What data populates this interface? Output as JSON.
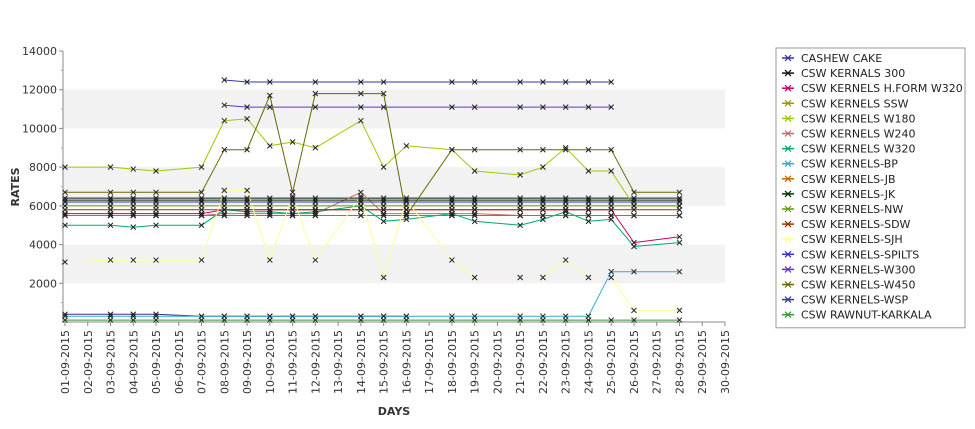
{
  "chart_data": {
    "type": "line",
    "title": "",
    "xlabel": "DAYS",
    "ylabel": "RATES",
    "ylim": [
      0,
      14000
    ],
    "yticks": [
      2000,
      4000,
      6000,
      8000,
      10000,
      12000,
      14000
    ],
    "ytick_labels": [
      "2000",
      "4000",
      "6000",
      "8000",
      "10000",
      "12000",
      "14000"
    ],
    "grid": "horizontal alternating bands",
    "legend_position": "right",
    "categories": [
      "01-09-2015",
      "02-09-2015",
      "03-09-2015",
      "04-09-2015",
      "05-09-2015",
      "06-09-2015",
      "07-09-2015",
      "08-09-2015",
      "09-09-2015",
      "10-09-2015",
      "11-09-2015",
      "12-09-2015",
      "13-09-2015",
      "14-09-2015",
      "15-09-2015",
      "16-09-2015",
      "17-09-2015",
      "18-09-2015",
      "19-09-2015",
      "20-09-2015",
      "21-09-2015",
      "22-09-2015",
      "23-09-2015",
      "24-09-2015",
      "25-09-2015",
      "26-09-2015",
      "27-09-2015",
      "28-09-2015",
      "29-09-2015",
      "30-09-2015"
    ],
    "series": [
      {
        "name": "CASHEW CAKE",
        "color": "#333399",
        "values": [
          400,
          null,
          400,
          400,
          400,
          null,
          300,
          300,
          300,
          300,
          300,
          300,
          null,
          300,
          300,
          300,
          null,
          null,
          null,
          null,
          null,
          null,
          null,
          null,
          null,
          null,
          null,
          null,
          null,
          null
        ]
      },
      {
        "name": "CSW KERNALS 300",
        "color": "#111111",
        "values": [
          6400,
          null,
          6400,
          6400,
          6400,
          null,
          6400,
          6400,
          6400,
          6400,
          6400,
          6400,
          null,
          6400,
          6400,
          6400,
          null,
          6400,
          6400,
          null,
          6400,
          6400,
          6400,
          6400,
          6400,
          6400,
          null,
          6400,
          null,
          null
        ]
      },
      {
        "name": "CSW KERNELS H.FORM W320",
        "color": "#cc0066",
        "values": [
          5600,
          null,
          5600,
          5600,
          5600,
          null,
          5600,
          5800,
          5800,
          5800,
          5800,
          5800,
          null,
          5800,
          5800,
          5800,
          null,
          5800,
          5800,
          null,
          5800,
          5800,
          5800,
          5800,
          5800,
          4100,
          null,
          4400,
          null,
          null
        ]
      },
      {
        "name": "CSW KERNELS SSW",
        "color": "#999900",
        "values": [
          5500,
          null,
          5500,
          5500,
          5500,
          null,
          5500,
          5500,
          5500,
          5500,
          5500,
          5500,
          null,
          5500,
          5500,
          5500,
          null,
          5500,
          5500,
          null,
          5500,
          5500,
          5500,
          5500,
          5500,
          5500,
          null,
          5500,
          null,
          null
        ]
      },
      {
        "name": "CSW KERNELS W180",
        "color": "#99cc00",
        "values": [
          8000,
          null,
          8000,
          7900,
          7800,
          null,
          8000,
          10400,
          10500,
          9100,
          9300,
          9000,
          null,
          10400,
          8000,
          9100,
          null,
          8900,
          7800,
          null,
          7600,
          8000,
          9000,
          7800,
          7800,
          6000,
          null,
          6000,
          null,
          null
        ]
      },
      {
        "name": "CSW KERNELS W240",
        "color": "#cc6666",
        "values": [
          5500,
          null,
          5500,
          5500,
          5500,
          null,
          5500,
          5600,
          5600,
          5600,
          5600,
          5600,
          null,
          6700,
          5600,
          5600,
          null,
          5600,
          5600,
          null,
          5500,
          5500,
          5500,
          5500,
          5500,
          5500,
          null,
          5500,
          null,
          null
        ]
      },
      {
        "name": "CSW KERNELS W320",
        "color": "#00aa66",
        "values": [
          5000,
          null,
          5000,
          4900,
          5000,
          null,
          5000,
          5800,
          5700,
          5700,
          5600,
          5700,
          null,
          6000,
          5200,
          5300,
          null,
          5600,
          5200,
          null,
          5000,
          5300,
          5700,
          5200,
          5300,
          3900,
          null,
          4100,
          null,
          null
        ]
      },
      {
        "name": "CSW KERNELS-BP",
        "color": "#33aacc",
        "values": [
          300,
          null,
          300,
          300,
          300,
          null,
          300,
          300,
          300,
          300,
          300,
          300,
          null,
          300,
          300,
          300,
          null,
          300,
          300,
          null,
          300,
          300,
          300,
          300,
          2600,
          2600,
          null,
          2600,
          null,
          null
        ]
      },
      {
        "name": "CSW KERNELS-JB",
        "color": "#cc6600",
        "values": [
          5500,
          null,
          5500,
          5500,
          5500,
          null,
          5500,
          5500,
          5500,
          5500,
          5500,
          5500,
          null,
          5500,
          5500,
          5500,
          null,
          5500,
          5500,
          null,
          5500,
          5500,
          5500,
          5500,
          5500,
          5500,
          null,
          5500,
          null,
          null
        ]
      },
      {
        "name": "CSW KERNELS-JK",
        "color": "#003300",
        "values": [
          6300,
          null,
          6300,
          6300,
          6300,
          null,
          6300,
          6300,
          6300,
          6300,
          6300,
          6300,
          null,
          6300,
          6300,
          6300,
          null,
          6300,
          6300,
          null,
          6300,
          6300,
          6300,
          6300,
          6300,
          6300,
          null,
          6300,
          null,
          null
        ]
      },
      {
        "name": "CSW KERNELS-NW",
        "color": "#669900",
        "values": [
          6000,
          null,
          6000,
          6000,
          6000,
          null,
          6000,
          6000,
          6000,
          6000,
          6000,
          6000,
          null,
          6000,
          6000,
          6000,
          null,
          6000,
          6000,
          null,
          6000,
          6000,
          6000,
          6000,
          6000,
          6000,
          null,
          6000,
          null,
          null
        ]
      },
      {
        "name": "CSW KERNELS-SDW",
        "color": "#993300",
        "values": [
          5800,
          null,
          5800,
          5800,
          5800,
          null,
          5800,
          5800,
          5800,
          5800,
          5800,
          5800,
          null,
          5800,
          5800,
          5800,
          null,
          5800,
          5800,
          null,
          5800,
          5800,
          5800,
          5800,
          5800,
          5800,
          null,
          5800,
          null,
          null
        ]
      },
      {
        "name": "CSW KERNELS-SJH",
        "color": "#ffff99",
        "values": [
          3100,
          null,
          3200,
          3200,
          3200,
          null,
          3200,
          6800,
          6800,
          3200,
          6500,
          3200,
          null,
          6500,
          2300,
          6300,
          null,
          3200,
          2300,
          null,
          2300,
          2300,
          3200,
          2300,
          2300,
          600,
          null,
          600,
          null,
          null
        ]
      },
      {
        "name": "CSW KERNELS-SPILTS",
        "color": "#3333cc",
        "values": [
          6200,
          null,
          6200,
          6200,
          6200,
          null,
          6200,
          6200,
          6200,
          6200,
          6200,
          6200,
          null,
          6200,
          6200,
          6200,
          null,
          6200,
          6200,
          null,
          6200,
          6200,
          6200,
          6200,
          6200,
          6200,
          null,
          6200,
          null,
          null
        ]
      },
      {
        "name": "CSW KERNELS-W300",
        "color": "#6633cc",
        "values": [
          null,
          null,
          null,
          null,
          null,
          null,
          null,
          11200,
          11100,
          11100,
          null,
          11100,
          null,
          11100,
          11100,
          null,
          null,
          11100,
          11100,
          null,
          11100,
          11100,
          11100,
          11100,
          11100,
          null,
          null,
          null,
          null,
          null
        ]
      },
      {
        "name": "CSW KERNELS-W450",
        "color": "#666600",
        "values": [
          6700,
          null,
          6700,
          6700,
          6700,
          null,
          6700,
          8900,
          8900,
          11700,
          6700,
          11800,
          null,
          11800,
          11800,
          5500,
          null,
          8900,
          8900,
          null,
          8900,
          8900,
          8900,
          8900,
          8900,
          6700,
          null,
          6700,
          null,
          null
        ]
      },
      {
        "name": "CSW KERNELS-WSP",
        "color": "#3333aa",
        "values": [
          null,
          null,
          null,
          null,
          null,
          null,
          null,
          12500,
          12400,
          12400,
          null,
          12400,
          null,
          12400,
          12400,
          null,
          null,
          12400,
          12400,
          null,
          12400,
          12400,
          12400,
          12400,
          12400,
          null,
          null,
          null,
          null,
          null
        ]
      },
      {
        "name": "CSW RAWNUT-KARKALA",
        "color": "#339933",
        "values": [
          100,
          null,
          100,
          100,
          100,
          null,
          100,
          100,
          100,
          100,
          100,
          100,
          null,
          100,
          100,
          100,
          null,
          100,
          100,
          null,
          100,
          100,
          100,
          100,
          100,
          100,
          null,
          100,
          null,
          null
        ]
      }
    ]
  }
}
